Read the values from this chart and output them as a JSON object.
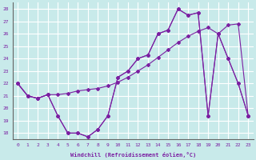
{
  "xlabel": "Windchill (Refroidissement éolien,°C)",
  "background_color": "#c8eaea",
  "grid_color": "#ffffff",
  "line_color": "#7b1fa2",
  "xlim": [
    -0.5,
    23.5
  ],
  "ylim": [
    17.5,
    28.5
  ],
  "yticks": [
    18,
    19,
    20,
    21,
    22,
    23,
    24,
    25,
    26,
    27,
    28
  ],
  "xticks": [
    0,
    1,
    2,
    3,
    4,
    5,
    6,
    7,
    8,
    9,
    10,
    11,
    12,
    13,
    14,
    15,
    16,
    17,
    18,
    19,
    20,
    21,
    22,
    23
  ],
  "line1_x": [
    0,
    1,
    2,
    3,
    4,
    5,
    6,
    7,
    8,
    9,
    10,
    11,
    12,
    13,
    14,
    15,
    16,
    17,
    18,
    19,
    20,
    21,
    22,
    23
  ],
  "line1_y": [
    22,
    21,
    20.8,
    21.1,
    21.1,
    21.2,
    21.4,
    21.5,
    21.6,
    21.8,
    22.1,
    22.5,
    23.0,
    23.5,
    24.1,
    24.7,
    25.3,
    25.8,
    26.2,
    26.5,
    26.0,
    26.7,
    26.8,
    19.4
  ],
  "line2_x": [
    0,
    1,
    2,
    3,
    4,
    5,
    6,
    7,
    8,
    9,
    10,
    11,
    12,
    13,
    14,
    15,
    16,
    17,
    18,
    19,
    20,
    21,
    22,
    23
  ],
  "line2_y": [
    22,
    21,
    20.8,
    21.1,
    19.4,
    18.0,
    18.0,
    17.7,
    18.3,
    19.4,
    22.5,
    23.0,
    24.0,
    24.3,
    26.0,
    26.3,
    28.0,
    27.5,
    27.7,
    19.4,
    26.0,
    24.0,
    22.0,
    19.4
  ],
  "line3_x": [
    0,
    1,
    2,
    3,
    4,
    5,
    6,
    7,
    8,
    9,
    10,
    11,
    12,
    13,
    14,
    15,
    16,
    17,
    18,
    19,
    20,
    21,
    22,
    23
  ],
  "line3_y": [
    22,
    21,
    20.8,
    21.1,
    19.4,
    18.0,
    18.0,
    17.7,
    18.3,
    19.4,
    22.5,
    23.0,
    24.0,
    24.3,
    26.0,
    26.3,
    28.0,
    27.5,
    27.7,
    19.4,
    26.0,
    24.0,
    22.0,
    19.4
  ]
}
